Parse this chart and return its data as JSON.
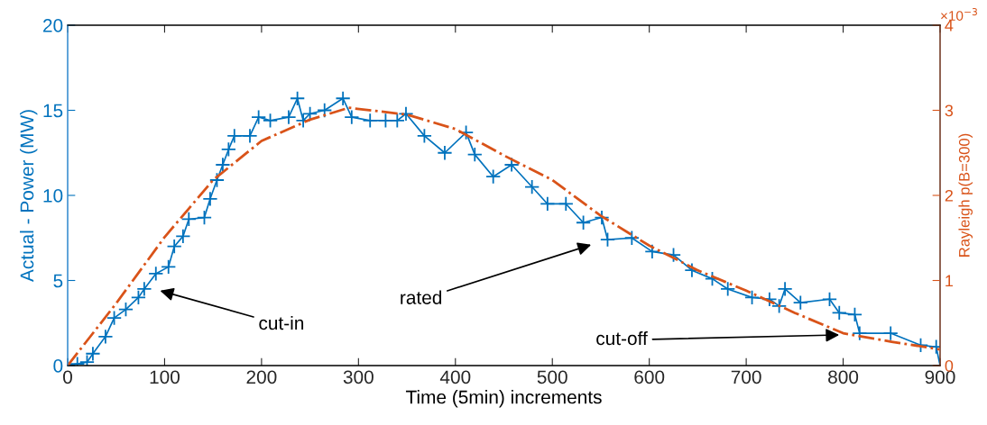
{
  "chart_data": {
    "type": "line",
    "xlabel": "Time (5min) increments",
    "ylabel": "Actual - Power (MW)",
    "y2label": "Rayleigh p(B=300)",
    "xlim": [
      0,
      900
    ],
    "xticks": [
      0,
      100,
      200,
      300,
      400,
      500,
      600,
      700,
      800,
      900
    ],
    "ylim": [
      0,
      20
    ],
    "yticks": [
      0,
      5,
      10,
      15,
      20
    ],
    "y2lim": [
      0,
      4
    ],
    "y2ticks": [
      0,
      1,
      2,
      3,
      4
    ],
    "grid": false,
    "legend": false,
    "series": [
      {
        "color": "#0072bd",
        "marker": "cross",
        "line_style": "solid",
        "x": [
          0,
          10,
          20,
          26,
          39,
          48,
          60,
          73,
          79,
          91,
          104,
          110,
          119,
          125,
          141,
          147,
          154,
          160,
          166,
          172,
          188,
          197,
          209,
          228,
          237,
          243,
          250,
          265,
          284,
          293,
          312,
          328,
          340,
          349,
          368,
          389,
          411,
          420,
          439,
          458,
          479,
          495,
          514,
          532,
          551,
          557,
          582,
          603,
          625,
          644,
          665,
          681,
          706,
          724,
          734,
          740,
          756,
          786,
          796,
          812,
          817,
          849,
          880,
          896,
          900
        ],
        "values": [
          0,
          0.1,
          0.2,
          0.7,
          1.7,
          2.8,
          3.3,
          4.0,
          4.5,
          5.4,
          5.8,
          7.0,
          7.6,
          8.6,
          8.7,
          9.8,
          10.9,
          11.8,
          12.7,
          13.5,
          13.5,
          14.6,
          14.4,
          14.6,
          15.7,
          14.4,
          14.8,
          15.0,
          15.7,
          14.6,
          14.4,
          14.4,
          14.4,
          14.8,
          13.5,
          12.5,
          13.7,
          12.4,
          11.1,
          11.8,
          10.5,
          9.5,
          9.5,
          8.4,
          8.7,
          7.4,
          7.5,
          6.7,
          6.5,
          5.6,
          5.1,
          4.5,
          4.0,
          3.9,
          3.5,
          4.5,
          3.7,
          3.9,
          3.1,
          3.0,
          1.9,
          1.9,
          1.2,
          1.1,
          0.0
        ]
      },
      {
        "color": "#d95319",
        "axis": "y2",
        "marker": "none",
        "line_style": "dashdot",
        "x": [
          0,
          50,
          100,
          150,
          200,
          250,
          290,
          350,
          400,
          450,
          500,
          550,
          600,
          650,
          700,
          750,
          800,
          850,
          900
        ],
        "values": [
          0,
          0.73,
          1.51,
          2.18,
          2.64,
          2.89,
          3.03,
          2.95,
          2.78,
          2.47,
          2.18,
          1.76,
          1.41,
          1.12,
          0.88,
          0.62,
          0.38,
          0.28,
          0.19
        ]
      }
    ],
    "annotations": [
      "cut-in",
      "rated",
      {
        "text": "cut-off",
        "x": 796,
        "y": 1.8
      },
      "×10$^{−3}$"
    ]
  }
}
